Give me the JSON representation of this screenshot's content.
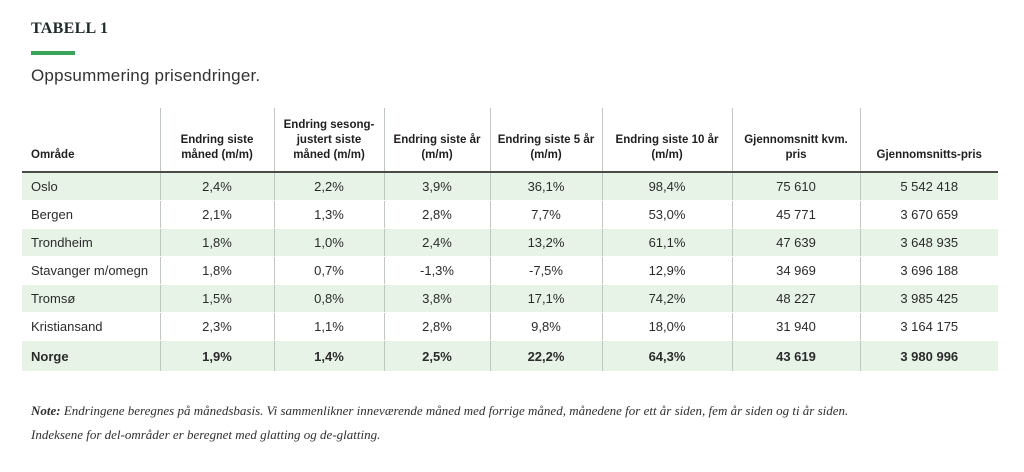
{
  "header": {
    "table_label": "TABELL 1",
    "subtitle": "Oppsummering prisendringer."
  },
  "table": {
    "columns": [
      "Område",
      "Endring siste måned (m/m)",
      "Endring sesong-justert siste måned (m/m)",
      "Endring siste år (m/m)",
      "Endring siste 5 år (m/m)",
      "Endring siste 10 år (m/m)",
      "Gjennomsnitt kvm. pris",
      "Gjennomsnitts-pris"
    ],
    "rows": [
      [
        "Oslo",
        "2,4%",
        "2,2%",
        "3,9%",
        "36,1%",
        "98,4%",
        "75 610",
        "5 542 418"
      ],
      [
        "Bergen",
        "2,1%",
        "1,3%",
        "2,8%",
        "7,7%",
        "53,0%",
        "45 771",
        "3 670 659"
      ],
      [
        "Trondheim",
        "1,8%",
        "1,0%",
        "2,4%",
        "13,2%",
        "61,1%",
        "47 639",
        "3 648 935"
      ],
      [
        "Stavanger m/omegn",
        "1,8%",
        "0,7%",
        "-1,3%",
        "-7,5%",
        "12,9%",
        "34 969",
        "3 696 188"
      ],
      [
        "Tromsø",
        "1,5%",
        "0,8%",
        "3,8%",
        "17,1%",
        "74,2%",
        "48 227",
        "3 985 425"
      ],
      [
        "Kristiansand",
        "2,3%",
        "1,1%",
        "2,8%",
        "9,8%",
        "18,0%",
        "31 940",
        "3 164 175"
      ],
      [
        "Norge",
        "1,9%",
        "1,4%",
        "2,5%",
        "22,2%",
        "64,3%",
        "43 619",
        "3 980 996"
      ]
    ]
  },
  "note": {
    "label": "Note:",
    "line1": " Endringene beregnes på månedsbasis. Vi sammenlikner inneværende måned med forrige måned, månedene for ett år siden, fem år siden og ti år siden.",
    "line2": "Indeksene for del-områder er beregnet med glatting og de-glatting."
  },
  "colors": {
    "accent": "#3aa55a",
    "row_stripe": "#e8f3e8"
  }
}
